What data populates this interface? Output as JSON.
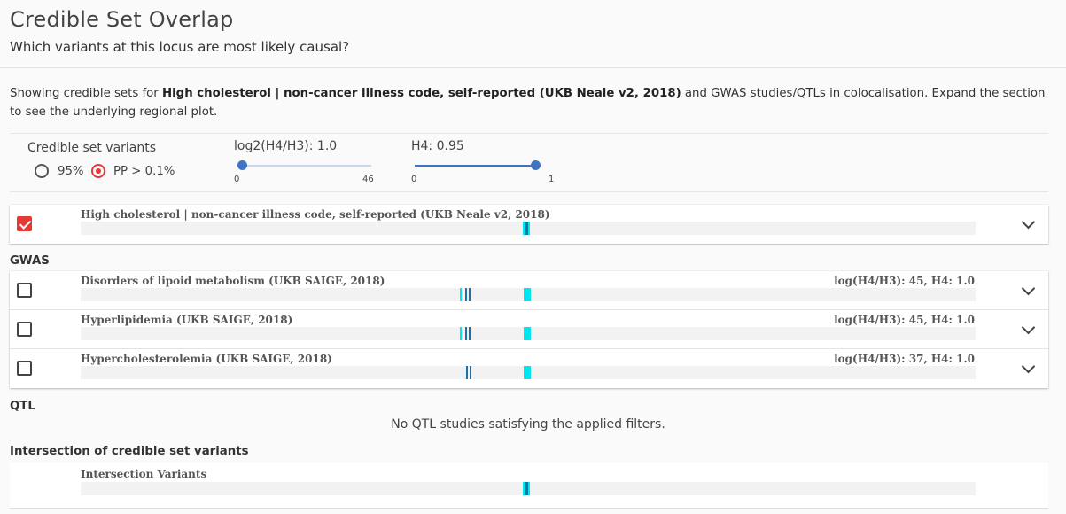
{
  "header": {
    "title": "Credible Set Overlap",
    "subtitle": "Which variants at this locus are most likely causal?"
  },
  "description": {
    "prefix": "Showing credible sets for ",
    "study": "High cholesterol | non-cancer illness code, self-reported (UKB Neale v2, 2018)",
    "suffix": " and GWAS studies/QTLs in colocalisation. Expand the section to see the underlying regional plot."
  },
  "filters": {
    "credible_set": {
      "label": "Credible set variants",
      "options": [
        {
          "label": "95%",
          "selected": false
        },
        {
          "label": "PP > 0.1%",
          "selected": true
        }
      ]
    },
    "log2_slider": {
      "label": "log2(H4/H3): 1.0",
      "value": 1.0,
      "min_label": "0",
      "max_label": "46",
      "min": 0,
      "max": 46
    },
    "h4_slider": {
      "label": "H4: 0.95",
      "value": 0.95,
      "min_label": "0",
      "max_label": "1",
      "min": 0,
      "max": 1
    }
  },
  "colors": {
    "accent": "#e53935",
    "slider": "#3f74c2",
    "mark_cyan": "#00e5ee",
    "mark_dark": "#1f6fa8"
  },
  "lead_study": {
    "label": "High cholesterol | non-cancer illness code, self-reported (UKB Neale v2, 2018)",
    "checked": true
  },
  "sections": {
    "gwas": "GWAS",
    "qtl": "QTL",
    "qtl_empty": "No QTL studies satisfying the applied filters.",
    "intersection": "Intersection of credible set variants"
  },
  "gwas_rows": [
    {
      "label": "Disorders of lipoid metabolism (UKB SAIGE, 2018)",
      "stat": "log(H4/H3): 45, H4: 1.0",
      "checked": false
    },
    {
      "label": "Hyperlipidemia (UKB SAIGE, 2018)",
      "stat": "log(H4/H3): 45, H4: 1.0",
      "checked": false
    },
    {
      "label": "Hypercholesterolemia (UKB SAIGE, 2018)",
      "stat": "log(H4/H3): 37, H4: 1.0",
      "checked": false
    }
  ],
  "intersection": {
    "label": "Intersection Variants"
  }
}
